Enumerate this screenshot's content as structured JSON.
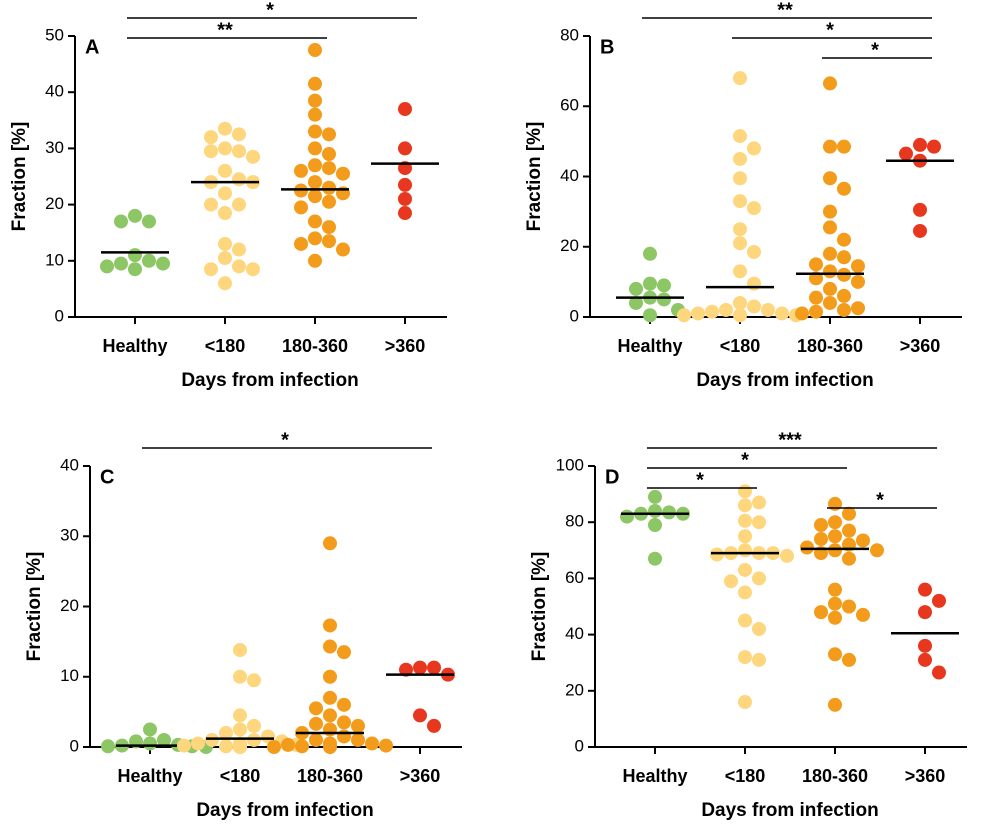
{
  "chart_data": [
    {
      "type": "strip",
      "panel": "A",
      "ylabel": "Fraction [%]",
      "xlabel": "Days from infection",
      "categories": [
        "Healthy",
        "<180",
        "180-360",
        ">360"
      ],
      "colors": [
        "#8dc665",
        "#fdd67e",
        "#f39b1a",
        "#e8371f"
      ],
      "values": [
        [
          18,
          17,
          17,
          11,
          10,
          9.5,
          9.5,
          9,
          8.5
        ],
        [
          33.5,
          32.5,
          32,
          30,
          29.5,
          29.5,
          28.5,
          26,
          24.5,
          24,
          24,
          22,
          20,
          20,
          18.5,
          13,
          12,
          10.5,
          9,
          8.5,
          8.5,
          6
        ],
        [
          47.5,
          41.5,
          38.5,
          36,
          33,
          32.5,
          30,
          29,
          27,
          26.5,
          26,
          25.5,
          24,
          23,
          22.5,
          22,
          21.5,
          20.5,
          19.5,
          17,
          16,
          14,
          13.5,
          13,
          12,
          10
        ],
        [
          37,
          30,
          26.5,
          23.5,
          21,
          18.5
        ]
      ],
      "medians": [
        11.5,
        24,
        22.7,
        27.3
      ],
      "ylim": [
        0,
        50
      ],
      "yticks": [
        0,
        10,
        20,
        30,
        40,
        50
      ],
      "brackets": [
        {
          "from": "Healthy",
          "to": ">360",
          "label": "*"
        },
        {
          "from": "Healthy",
          "to": "180-360",
          "label": "**"
        }
      ]
    },
    {
      "type": "strip",
      "panel": "B",
      "ylabel": "Fraction [%]",
      "xlabel": "Days from infection",
      "categories": [
        "Healthy",
        "<180",
        "180-360",
        ">360"
      ],
      "colors": [
        "#8dc665",
        "#fdd67e",
        "#f39b1a",
        "#e8371f"
      ],
      "values": [
        [
          18,
          9.5,
          9,
          8,
          5.5,
          5,
          4,
          2,
          0.5
        ],
        [
          68,
          51.5,
          48,
          45,
          39.5,
          33,
          31,
          25,
          21,
          18.5,
          13,
          9.5,
          4,
          3,
          2,
          2,
          1.5,
          1,
          1,
          0.5,
          0.5,
          0.5
        ],
        [
          66.5,
          48.5,
          48.5,
          39.5,
          36.5,
          30,
          25.5,
          22,
          18,
          17,
          15,
          14.5,
          13,
          12,
          11,
          10,
          8,
          6,
          5.5,
          4,
          2.5,
          2,
          1.5,
          1
        ],
        [
          49,
          48.5,
          46.5,
          44.5,
          30.5,
          24.5
        ]
      ],
      "medians": [
        5.5,
        8.5,
        12.3,
        44.5
      ],
      "ylim": [
        0,
        80
      ],
      "yticks": [
        0,
        20,
        40,
        60,
        80
      ],
      "brackets": [
        {
          "from": "Healthy",
          "to": ">360",
          "label": "**"
        },
        {
          "from": "<180",
          "to": ">360",
          "label": "*"
        },
        {
          "from": "180-360",
          "to": ">360",
          "label": "*"
        }
      ]
    },
    {
      "type": "strip",
      "panel": "C",
      "ylabel": "Fraction [%]",
      "xlabel": "Days from infection",
      "categories": [
        "Healthy",
        "<180",
        "180-360",
        ">360"
      ],
      "colors": [
        "#8dc665",
        "#fdd67e",
        "#f39b1a",
        "#e8371f"
      ],
      "values": [
        [
          2.5,
          1,
          0.8,
          0.5,
          0.3,
          0.2,
          0.1,
          0.1,
          0
        ],
        [
          13.8,
          10,
          9.5,
          4.5,
          3,
          2.5,
          2,
          1.5,
          1,
          1,
          0.8,
          0.5,
          0.5,
          0.3,
          0.2,
          0.2,
          0.1,
          0.1,
          0,
          0
        ],
        [
          29,
          17.3,
          14.3,
          13.5,
          10,
          7,
          6,
          5.5,
          4.5,
          3.5,
          3.3,
          3,
          2.5,
          2,
          1.5,
          1,
          1,
          0.5,
          0.5,
          0.3,
          0.2,
          0.1,
          0,
          0
        ],
        [
          11.3,
          11.3,
          11,
          10.3,
          4.5,
          3
        ]
      ],
      "medians": [
        0.2,
        1.2,
        2,
        10.3
      ],
      "ylim": [
        0,
        40
      ],
      "yticks": [
        0,
        10,
        20,
        30,
        40
      ],
      "brackets": [
        {
          "from": "Healthy",
          "to": ">360",
          "label": "*"
        }
      ]
    },
    {
      "type": "strip",
      "panel": "D",
      "ylabel": "Fraction [%]",
      "xlabel": "Days from infection",
      "categories": [
        "Healthy",
        "<180",
        "180-360",
        ">360"
      ],
      "colors": [
        "#8dc665",
        "#fdd67e",
        "#f39b1a",
        "#e8371f"
      ],
      "values": [
        [
          89,
          84,
          83.5,
          83,
          83,
          82,
          79,
          67
        ],
        [
          91,
          87,
          86,
          80.5,
          80,
          75,
          70,
          69,
          69,
          69,
          68.5,
          68,
          63,
          60,
          59,
          55,
          45,
          42,
          32,
          31,
          16
        ],
        [
          86.5,
          83,
          80,
          79,
          77,
          75,
          74,
          73.5,
          72,
          71,
          70,
          70,
          69,
          67,
          56,
          51,
          50,
          48,
          47,
          46,
          33,
          31,
          15
        ],
        [
          56,
          52,
          48,
          36,
          31,
          26.5
        ]
      ],
      "medians": [
        83,
        69,
        70.5,
        40.5
      ],
      "ylim": [
        0,
        100
      ],
      "yticks": [
        0,
        20,
        40,
        60,
        80,
        100
      ],
      "brackets": [
        {
          "from": "Healthy",
          "to": ">360",
          "label": "***"
        },
        {
          "from": "Healthy",
          "to": "180-360",
          "label": "*"
        },
        {
          "from": "Healthy",
          "to": "<180",
          "label": "*"
        },
        {
          "from": "180-360",
          "to": ">360",
          "label": "*"
        }
      ]
    }
  ]
}
